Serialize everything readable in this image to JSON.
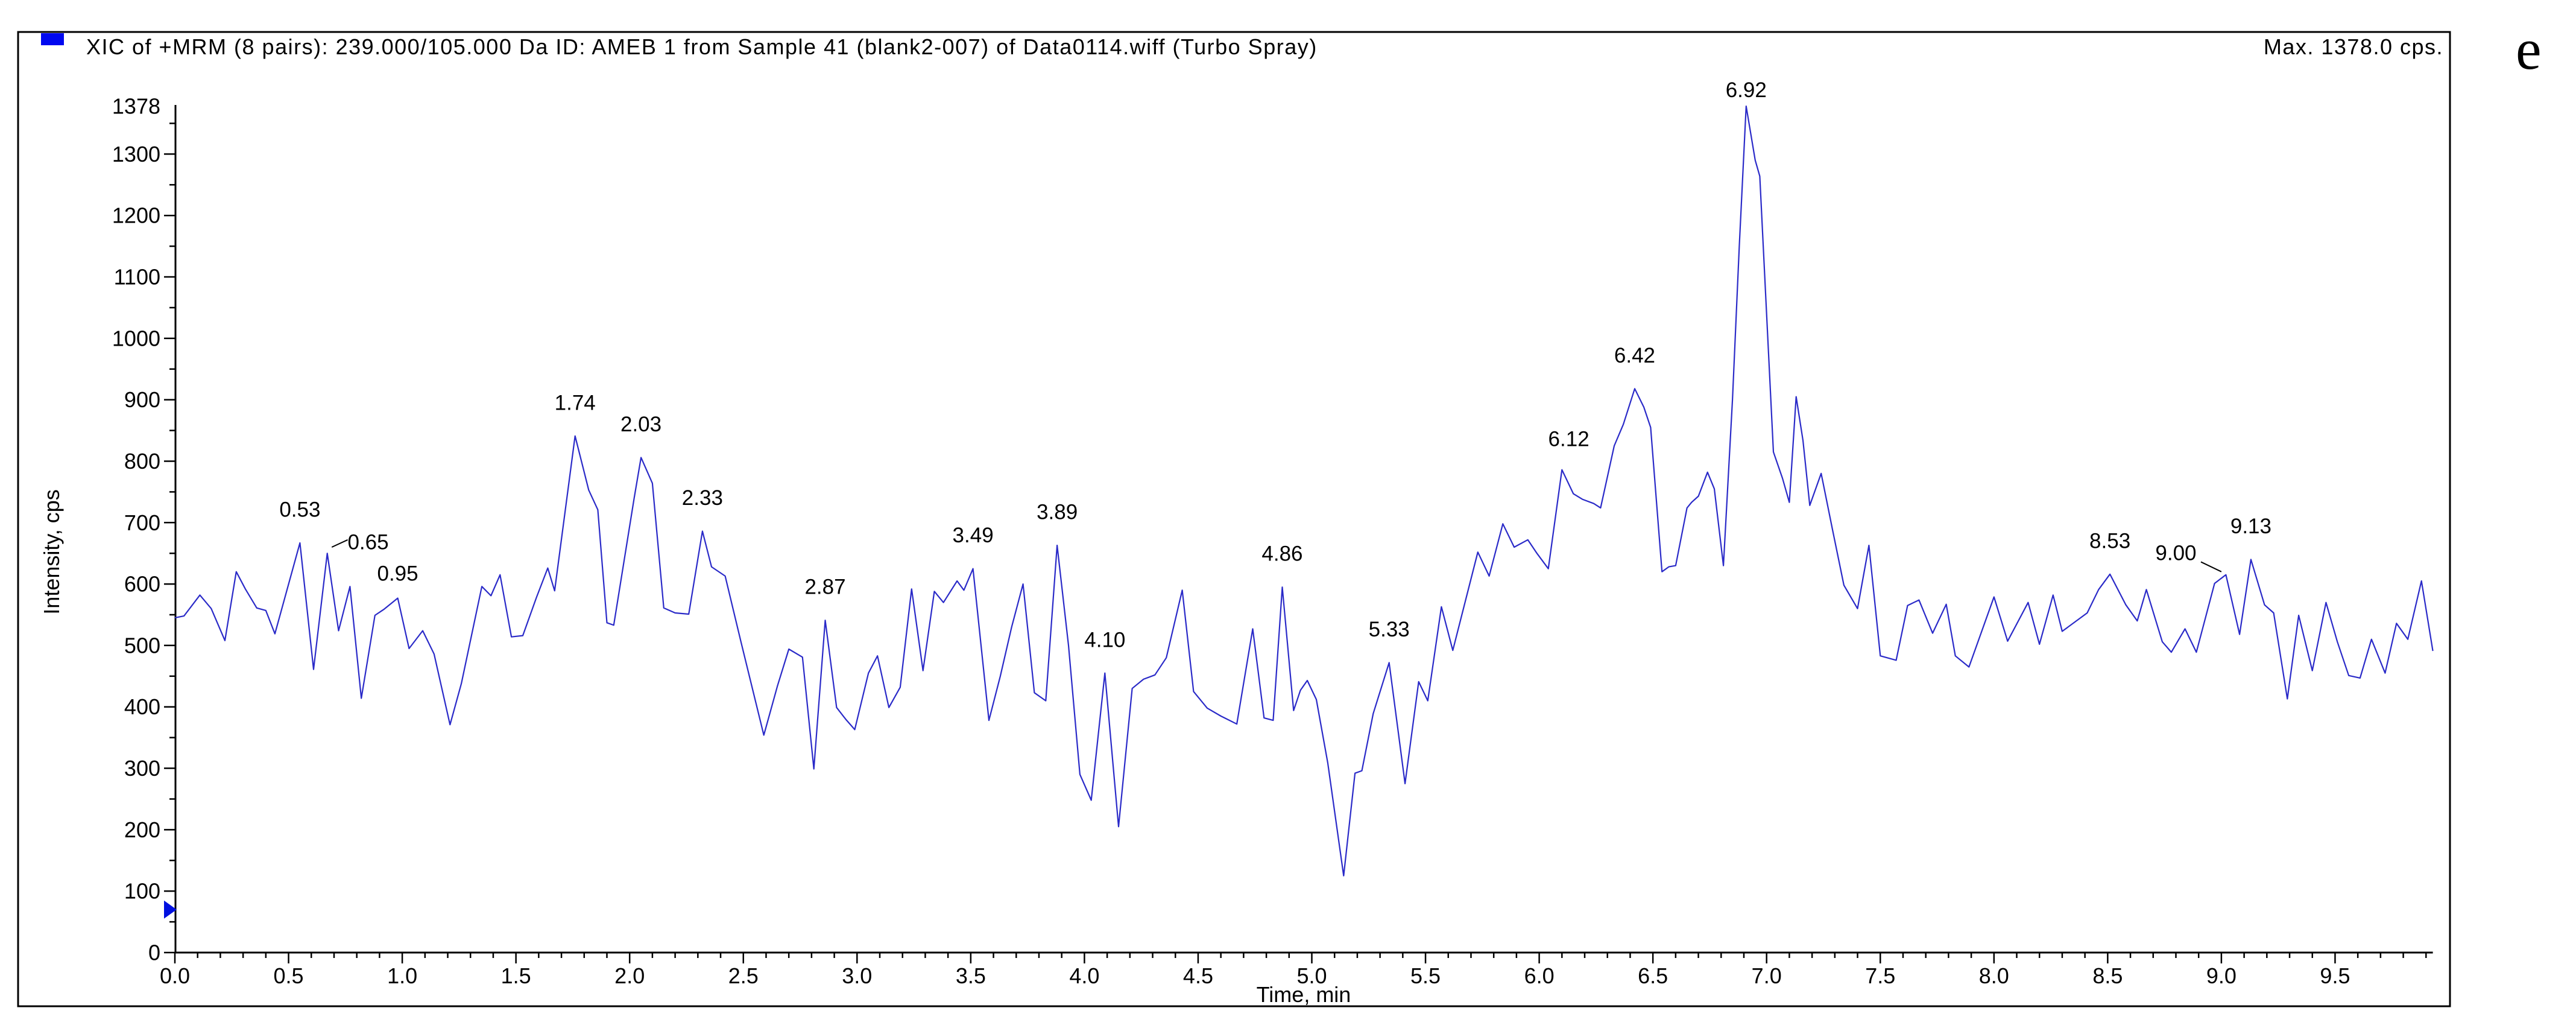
{
  "panel_label": "e",
  "header": {
    "title": "XIC of +MRM (8 pairs): 239.000/105.000 Da ID: AMEB 1 from Sample 41 (blank2-007) of Data0114.wiff (Turbo Spray)",
    "max_label": "Max. 1378.0 cps.",
    "legend_color": "#0008f0"
  },
  "chart_data": {
    "type": "line",
    "title": "XIC of +MRM (8 pairs): 239.000/105.000 Da ID: AMEB 1 from Sample 41 (blank2-007) of Data0114.wiff (Turbo Spray)",
    "xlabel": "Time, min",
    "ylabel": "Intensity, cps",
    "xlim": [
      0,
      10.03
    ],
    "ylim": [
      0,
      1378
    ],
    "x_axis_end": 9.93,
    "x_ticks": [
      0,
      0.5,
      1.0,
      1.5,
      2.0,
      2.5,
      3.0,
      3.5,
      4.0,
      4.5,
      5.0,
      5.5,
      6.0,
      6.5,
      7.0,
      7.5,
      8.0,
      8.5,
      9.0,
      9.5
    ],
    "x_minor_step": 0.1,
    "x_minor_end": 9.9,
    "y_ticks": [
      0,
      100,
      200,
      300,
      400,
      500,
      600,
      700,
      800,
      900,
      1000,
      1100,
      1200,
      1300
    ],
    "y_top_tick": 1378,
    "y_minor_step": 50,
    "grid": false,
    "legend_position": "none",
    "trace_color": "#2a2ac8",
    "marker": {
      "v": 70,
      "color": "#0010e0"
    },
    "points": [
      [
        0.0,
        545
      ],
      [
        0.04,
        548
      ],
      [
        0.11,
        582
      ],
      [
        0.16,
        560
      ],
      [
        0.22,
        508
      ],
      [
        0.27,
        620
      ],
      [
        0.31,
        592
      ],
      [
        0.36,
        561
      ],
      [
        0.4,
        557
      ],
      [
        0.44,
        519
      ],
      [
        0.55,
        667
      ],
      [
        0.61,
        461
      ],
      [
        0.67,
        650
      ],
      [
        0.72,
        524
      ],
      [
        0.77,
        596
      ],
      [
        0.82,
        414
      ],
      [
        0.88,
        549
      ],
      [
        0.92,
        559
      ],
      [
        0.98,
        577
      ],
      [
        1.03,
        495
      ],
      [
        1.09,
        524
      ],
      [
        1.14,
        486
      ],
      [
        1.21,
        371
      ],
      [
        1.26,
        438
      ],
      [
        1.35,
        596
      ],
      [
        1.39,
        581
      ],
      [
        1.43,
        615
      ],
      [
        1.48,
        514
      ],
      [
        1.53,
        516
      ],
      [
        1.59,
        578
      ],
      [
        1.64,
        626
      ],
      [
        1.67,
        589
      ],
      [
        1.76,
        841
      ],
      [
        1.82,
        753
      ],
      [
        1.86,
        721
      ],
      [
        1.9,
        537
      ],
      [
        1.93,
        533
      ],
      [
        2.02,
        740
      ],
      [
        2.05,
        806
      ],
      [
        2.1,
        764
      ],
      [
        2.15,
        561
      ],
      [
        2.2,
        553
      ],
      [
        2.26,
        551
      ],
      [
        2.32,
        686
      ],
      [
        2.36,
        628
      ],
      [
        2.42,
        613
      ],
      [
        2.49,
        505
      ],
      [
        2.59,
        354
      ],
      [
        2.65,
        434
      ],
      [
        2.7,
        494
      ],
      [
        2.76,
        481
      ],
      [
        2.81,
        299
      ],
      [
        2.86,
        541
      ],
      [
        2.91,
        399
      ],
      [
        2.95,
        380
      ],
      [
        2.99,
        363
      ],
      [
        3.05,
        455
      ],
      [
        3.09,
        483
      ],
      [
        3.14,
        399
      ],
      [
        3.19,
        432
      ],
      [
        3.24,
        592
      ],
      [
        3.29,
        459
      ],
      [
        3.34,
        588
      ],
      [
        3.38,
        570
      ],
      [
        3.44,
        605
      ],
      [
        3.47,
        590
      ],
      [
        3.51,
        625
      ],
      [
        3.58,
        378
      ],
      [
        3.63,
        450
      ],
      [
        3.68,
        530
      ],
      [
        3.73,
        600
      ],
      [
        3.78,
        423
      ],
      [
        3.83,
        410
      ],
      [
        3.88,
        663
      ],
      [
        3.93,
        500
      ],
      [
        3.98,
        290
      ],
      [
        4.03,
        248
      ],
      [
        4.09,
        455
      ],
      [
        4.15,
        205
      ],
      [
        4.21,
        430
      ],
      [
        4.26,
        445
      ],
      [
        4.31,
        452
      ],
      [
        4.36,
        480
      ],
      [
        4.43,
        590
      ],
      [
        4.48,
        425
      ],
      [
        4.54,
        398
      ],
      [
        4.6,
        385
      ],
      [
        4.67,
        372
      ],
      [
        4.74,
        527
      ],
      [
        4.79,
        382
      ],
      [
        4.83,
        378
      ],
      [
        4.87,
        595
      ],
      [
        4.92,
        394
      ],
      [
        4.95,
        427
      ],
      [
        4.98,
        443
      ],
      [
        5.02,
        412
      ],
      [
        5.07,
        309
      ],
      [
        5.14,
        125
      ],
      [
        5.19,
        292
      ],
      [
        5.22,
        296
      ],
      [
        5.27,
        389
      ],
      [
        5.34,
        472
      ],
      [
        5.41,
        275
      ],
      [
        5.47,
        441
      ],
      [
        5.51,
        410
      ],
      [
        5.57,
        563
      ],
      [
        5.62,
        492
      ],
      [
        5.73,
        652
      ],
      [
        5.78,
        613
      ],
      [
        5.84,
        698
      ],
      [
        5.89,
        660
      ],
      [
        5.95,
        672
      ],
      [
        5.99,
        650
      ],
      [
        6.04,
        625
      ],
      [
        6.1,
        786
      ],
      [
        6.15,
        747
      ],
      [
        6.19,
        738
      ],
      [
        6.24,
        731
      ],
      [
        6.27,
        724
      ],
      [
        6.33,
        825
      ],
      [
        6.37,
        860
      ],
      [
        6.42,
        918
      ],
      [
        6.46,
        888
      ],
      [
        6.49,
        855
      ],
      [
        6.54,
        620
      ],
      [
        6.57,
        628
      ],
      [
        6.6,
        630
      ],
      [
        6.65,
        724
      ],
      [
        6.67,
        733
      ],
      [
        6.7,
        743
      ],
      [
        6.74,
        782
      ],
      [
        6.77,
        755
      ],
      [
        6.81,
        630
      ],
      [
        6.85,
        900
      ],
      [
        6.88,
        1150
      ],
      [
        6.91,
        1378
      ],
      [
        6.95,
        1290
      ],
      [
        6.97,
        1264
      ],
      [
        7.03,
        815
      ],
      [
        7.07,
        772
      ],
      [
        7.1,
        733
      ],
      [
        7.13,
        905
      ],
      [
        7.16,
        834
      ],
      [
        7.19,
        728
      ],
      [
        7.24,
        780
      ],
      [
        7.29,
        688
      ],
      [
        7.34,
        598
      ],
      [
        7.4,
        560
      ],
      [
        7.45,
        663
      ],
      [
        7.5,
        483
      ],
      [
        7.57,
        476
      ],
      [
        7.62,
        565
      ],
      [
        7.67,
        574
      ],
      [
        7.73,
        520
      ],
      [
        7.79,
        567
      ],
      [
        7.83,
        483
      ],
      [
        7.89,
        465
      ],
      [
        8.0,
        579
      ],
      [
        8.06,
        507
      ],
      [
        8.15,
        570
      ],
      [
        8.2,
        502
      ],
      [
        8.26,
        582
      ],
      [
        8.3,
        523
      ],
      [
        8.41,
        553
      ],
      [
        8.46,
        591
      ],
      [
        8.51,
        616
      ],
      [
        8.58,
        566
      ],
      [
        8.63,
        540
      ],
      [
        8.67,
        591
      ],
      [
        8.74,
        506
      ],
      [
        8.78,
        489
      ],
      [
        8.84,
        527
      ],
      [
        8.89,
        489
      ],
      [
        8.97,
        601
      ],
      [
        9.02,
        615
      ],
      [
        9.08,
        518
      ],
      [
        9.13,
        640
      ],
      [
        9.19,
        566
      ],
      [
        9.23,
        553
      ],
      [
        9.29,
        413
      ],
      [
        9.34,
        549
      ],
      [
        9.4,
        459
      ],
      [
        9.46,
        570
      ],
      [
        9.51,
        506
      ],
      [
        9.56,
        451
      ],
      [
        9.61,
        447
      ],
      [
        9.66,
        510
      ],
      [
        9.72,
        455
      ],
      [
        9.77,
        536
      ],
      [
        9.82,
        510
      ],
      [
        9.88,
        605
      ],
      [
        9.93,
        491
      ]
    ],
    "peaks": [
      {
        "label": "0.53",
        "t": 0.55,
        "v": 667
      },
      {
        "label": "0.65",
        "t": 0.67,
        "v": 650,
        "lt": 0.85,
        "lv": 668,
        "leader": [
          [
            0.69,
            660
          ],
          [
            0.76,
            672
          ]
        ]
      },
      {
        "label": "0.95",
        "t": 0.98,
        "v": 577,
        "lt": 0.98,
        "lv": 617
      },
      {
        "label": "1.74",
        "t": 1.76,
        "v": 841
      },
      {
        "label": "2.03",
        "t": 2.05,
        "v": 806
      },
      {
        "label": "2.33",
        "t": 2.32,
        "v": 686
      },
      {
        "label": "2.87",
        "t": 2.86,
        "v": 541
      },
      {
        "label": "3.49",
        "t": 3.51,
        "v": 625
      },
      {
        "label": "3.89",
        "t": 3.88,
        "v": 663
      },
      {
        "label": "4.10",
        "t": 4.09,
        "v": 455
      },
      {
        "label": "4.86",
        "t": 4.87,
        "v": 595
      },
      {
        "label": "5.33",
        "t": 5.34,
        "v": 472
      },
      {
        "label": "6.12",
        "t": 6.1,
        "v": 786,
        "lt": 6.13,
        "lv": 836
      },
      {
        "label": "6.42",
        "t": 6.42,
        "v": 918
      },
      {
        "label": "6.92",
        "t": 6.91,
        "v": 1378,
        "lt": 6.91,
        "lv": 1404
      },
      {
        "label": "8.53",
        "t": 8.51,
        "v": 616
      },
      {
        "label": "9.00",
        "t": 9.02,
        "v": 615,
        "lt": 8.8,
        "lv": 650,
        "leader": [
          [
            8.91,
            636
          ],
          [
            9.0,
            620
          ]
        ]
      },
      {
        "label": "9.13",
        "t": 9.13,
        "v": 640
      }
    ]
  }
}
